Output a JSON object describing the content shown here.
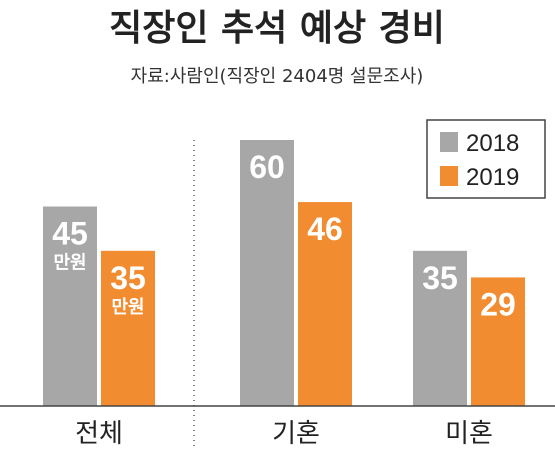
{
  "chart_data": {
    "type": "bar",
    "title": "직장인 추석 예상 경비",
    "subtitle": "자료:사람인(직장인 2404명 설문조사)",
    "categories": [
      "전체",
      "기혼",
      "미혼"
    ],
    "series": [
      {
        "name": "2018",
        "values": [
          45,
          60,
          35
        ],
        "color": "#a7a7a7"
      },
      {
        "name": "2019",
        "values": [
          35,
          46,
          29
        ],
        "color": "#f28c30"
      }
    ],
    "value_labels": [
      [
        "45",
        "60",
        "35"
      ],
      [
        "35",
        "46",
        "29"
      ]
    ],
    "unit_label": "만원",
    "unit_label_category_index": 0,
    "legend_position": "top-right",
    "ylim": [
      0,
      70
    ],
    "grid": false
  }
}
